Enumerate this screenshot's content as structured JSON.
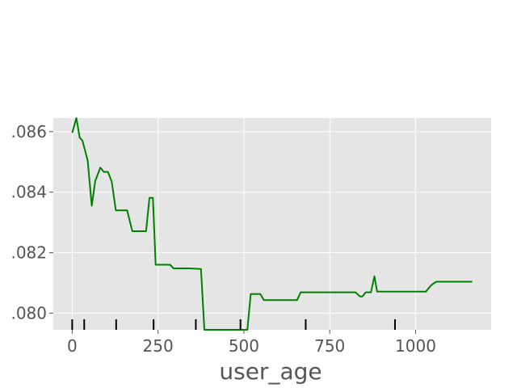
{
  "chart_data": {
    "type": "line",
    "title": "",
    "xlabel": "user_age",
    "ylabel": "",
    "xlim": [
      -55,
      1220
    ],
    "ylim": [
      0.07945,
      0.08645
    ],
    "grid": true,
    "x_ticks": [
      0,
      250,
      500,
      750,
      1000
    ],
    "y_ticks": [
      0.08,
      0.082,
      0.084,
      0.086
    ],
    "y_tick_labels": [
      ".080",
      ".082",
      ".084",
      ".086"
    ],
    "line_color": "#008000",
    "rug_color": "#000000",
    "plot_background": "#e5e5e5",
    "grid_color": "#ffffff",
    "rug": [
      0,
      35,
      128,
      237,
      360,
      490,
      680,
      940
    ],
    "series": [
      {
        "x": [
          0,
          12,
          22,
          30,
          45,
          57,
          67,
          82,
          92,
          104,
          115,
          127,
          140,
          160,
          175,
          190,
          205,
          215,
          225,
          235,
          243,
          255,
          268,
          285,
          295,
          340,
          375,
          385,
          400,
          420,
          455,
          475,
          498,
          502,
          510,
          520,
          538,
          548,
          558,
          570,
          590,
          610,
          640,
          655,
          665,
          680,
          705,
          735,
          765,
          790,
          825,
          838,
          845,
          855,
          870,
          880,
          888,
          900,
          920,
          950,
          985,
          1010,
          1030,
          1045,
          1060,
          1070,
          1085,
          1120,
          1165
        ],
        "y": [
          0.08596,
          0.08645,
          0.0858,
          0.0857,
          0.08505,
          0.08355,
          0.08437,
          0.08481,
          0.08467,
          0.08467,
          0.08435,
          0.0834,
          0.0834,
          0.0834,
          0.08271,
          0.08271,
          0.08271,
          0.08271,
          0.08381,
          0.08381,
          0.0816,
          0.0816,
          0.0816,
          0.0816,
          0.08148,
          0.08148,
          0.08146,
          0.07945,
          0.07945,
          0.07945,
          0.07945,
          0.07945,
          0.07945,
          0.07945,
          0.07945,
          0.08063,
          0.08063,
          0.08063,
          0.08043,
          0.08043,
          0.08043,
          0.08043,
          0.08043,
          0.08043,
          0.08069,
          0.08069,
          0.08069,
          0.08069,
          0.08069,
          0.08069,
          0.08069,
          0.08055,
          0.08055,
          0.08069,
          0.08069,
          0.08122,
          0.08071,
          0.08071,
          0.08071,
          0.08071,
          0.08071,
          0.08071,
          0.08071,
          0.08092,
          0.08104,
          0.08104,
          0.08104,
          0.08104,
          0.08104
        ]
      }
    ]
  }
}
